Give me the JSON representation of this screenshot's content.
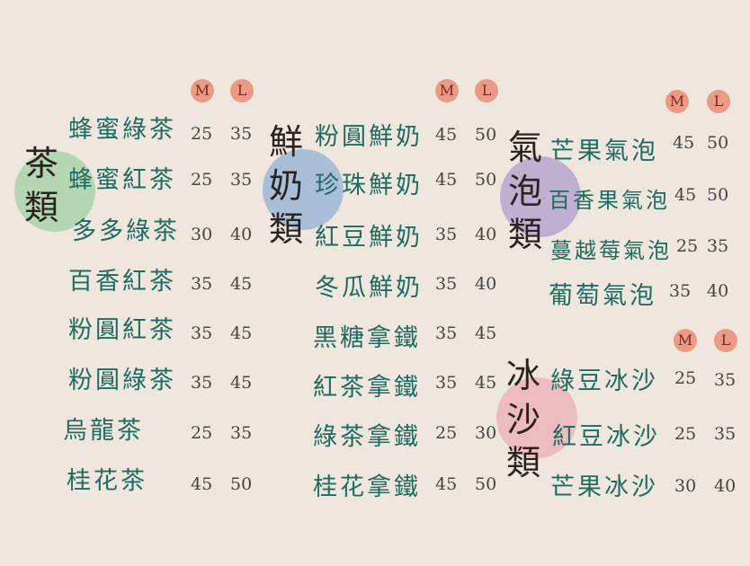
{
  "size_labels": {
    "m": "M",
    "l": "L"
  },
  "colors": {
    "tea": "#b5d6b3",
    "milk": "#a9bfd8",
    "sparkling": "#c1afd1",
    "slush": "#ecbcbf",
    "badge": "#eb9a86",
    "item_text": "#1f6b62"
  },
  "tea": {
    "title": [
      "茶",
      "類"
    ],
    "items": [
      {
        "name": "蜂蜜綠茶",
        "m": "25",
        "l": "35"
      },
      {
        "name": "蜂蜜紅茶",
        "m": "25",
        "l": "35"
      },
      {
        "name": "多多綠茶",
        "m": "30",
        "l": "40"
      },
      {
        "name": "百香紅茶",
        "m": "35",
        "l": "45"
      },
      {
        "name": "粉圓紅茶",
        "m": "35",
        "l": "45"
      },
      {
        "name": "粉圓綠茶",
        "m": "35",
        "l": "45"
      },
      {
        "name": "烏龍茶",
        "m": "25",
        "l": "35"
      },
      {
        "name": "桂花茶",
        "m": "45",
        "l": "50"
      }
    ]
  },
  "milk": {
    "title": [
      "鮮",
      "奶",
      "類"
    ],
    "items": [
      {
        "name": "粉圓鮮奶",
        "m": "45",
        "l": "50"
      },
      {
        "name": "珍珠鮮奶",
        "m": "45",
        "l": "50"
      },
      {
        "name": "紅豆鮮奶",
        "m": "35",
        "l": "40"
      },
      {
        "name": "冬瓜鮮奶",
        "m": "35",
        "l": "40"
      },
      {
        "name": "黑糖拿鐵",
        "m": "35",
        "l": "45"
      },
      {
        "name": "紅茶拿鐵",
        "m": "35",
        "l": "45"
      },
      {
        "name": "綠茶拿鐵",
        "m": "25",
        "l": "30"
      },
      {
        "name": "桂花拿鐵",
        "m": "45",
        "l": "50"
      }
    ]
  },
  "sparkling": {
    "title": [
      "氣",
      "泡",
      "類"
    ],
    "items": [
      {
        "name": "芒果氣泡",
        "m": "45",
        "l": "50"
      },
      {
        "name": "百香果氣泡",
        "m": "45",
        "l": "50"
      },
      {
        "name": "蔓越莓氣泡",
        "m": "25",
        "l": "35"
      },
      {
        "name": "葡萄氣泡",
        "m": "35",
        "l": "40"
      }
    ]
  },
  "slush": {
    "title": [
      "冰",
      "沙",
      "類"
    ],
    "items": [
      {
        "name": "綠豆冰沙",
        "m": "25",
        "l": "35"
      },
      {
        "name": "紅豆冰沙",
        "m": "25",
        "l": "35"
      },
      {
        "name": "芒果冰沙",
        "m": "30",
        "l": "40"
      }
    ]
  }
}
